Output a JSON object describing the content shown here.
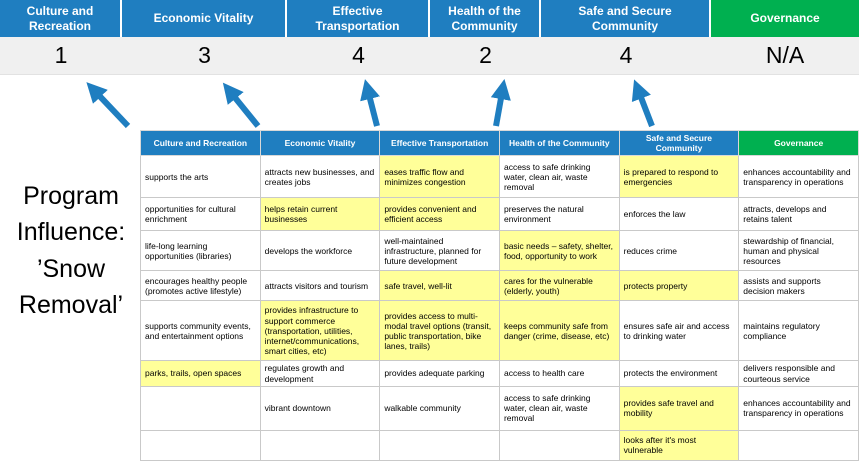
{
  "colors": {
    "blue": "#1f7ec0",
    "green": "#00b050",
    "yellow": "#ffff99",
    "scorebg": "#f0f0f0"
  },
  "program": {
    "text": "Program\nInfluence:\n’Snow\nRemoval’"
  },
  "scoreboard": {
    "columns": [
      {
        "label": "Culture and Recreation",
        "score": "1"
      },
      {
        "label": "Economic Vitality",
        "score": "3"
      },
      {
        "label": "Effective Transportation",
        "score": "4"
      },
      {
        "label": "Health of the Community",
        "score": "2"
      },
      {
        "label": "Safe and Secure Community",
        "score": "4"
      },
      {
        "label": "Governance",
        "score": "N/A"
      }
    ]
  },
  "matrix": {
    "headers": [
      {
        "label": "Culture and Recreation",
        "theme": "blue"
      },
      {
        "label": "Economic Vitality",
        "theme": "blue"
      },
      {
        "label": "Effective Transportation",
        "theme": "blue"
      },
      {
        "label": "Health of the Community",
        "theme": "blue"
      },
      {
        "label": "Safe and Secure Community",
        "theme": "blue"
      },
      {
        "label": "Governance",
        "theme": "green"
      }
    ],
    "rows": [
      [
        {
          "text": "supports the arts",
          "highlight": false
        },
        {
          "text": "attracts new businesses, and creates jobs",
          "highlight": false
        },
        {
          "text": "eases traffic flow and minimizes congestion",
          "highlight": true
        },
        {
          "text": "access to safe drinking water, clean air, waste removal",
          "highlight": false
        },
        {
          "text": "is prepared to respond to emergencies",
          "highlight": true
        },
        {
          "text": "enhances accountability and transparency in operations",
          "highlight": false
        }
      ],
      [
        {
          "text": "opportunities for cultural enrichment",
          "highlight": false
        },
        {
          "text": "helps retain current businesses",
          "highlight": true
        },
        {
          "text": "provides convenient and efficient access",
          "highlight": true
        },
        {
          "text": "preserves the natural environment",
          "highlight": false
        },
        {
          "text": "enforces the law",
          "highlight": false
        },
        {
          "text": "attracts, develops and retains talent",
          "highlight": false
        }
      ],
      [
        {
          "text": "life-long learning opportunities (libraries)",
          "highlight": false
        },
        {
          "text": "develops the workforce",
          "highlight": false
        },
        {
          "text": "well-maintained infrastructure, planned for future development",
          "highlight": false
        },
        {
          "text": "basic needs – safety, shelter, food, opportunity to work",
          "highlight": true
        },
        {
          "text": "reduces crime",
          "highlight": false
        },
        {
          "text": "stewardship of financial, human and physical resources",
          "highlight": false
        }
      ],
      [
        {
          "text": "encourages healthy people (promotes active lifestyle)",
          "highlight": false
        },
        {
          "text": "attracts visitors and tourism",
          "highlight": false
        },
        {
          "text": "safe travel, well-lit",
          "highlight": true
        },
        {
          "text": "cares for the vulnerable (elderly, youth)",
          "highlight": true
        },
        {
          "text": "protects property",
          "highlight": true
        },
        {
          "text": "assists and supports decision makers",
          "highlight": false
        }
      ],
      [
        {
          "text": "supports community events, and entertainment options",
          "highlight": false
        },
        {
          "text": "provides infrastructure to support commerce (transportation, utilities, internet/communications, smart cities, etc)",
          "highlight": true
        },
        {
          "text": "provides access to multi-modal travel options (transit, public transportation, bike lanes, trails)",
          "highlight": true
        },
        {
          "text": "keeps community safe from danger (crime, disease, etc)",
          "highlight": true
        },
        {
          "text": "ensures safe air and access to drinking water",
          "highlight": false
        },
        {
          "text": "maintains regulatory compliance",
          "highlight": false
        }
      ],
      [
        {
          "text": "parks, trails, open spaces",
          "highlight": true
        },
        {
          "text": "regulates growth and development",
          "highlight": false
        },
        {
          "text": "provides adequate parking",
          "highlight": false
        },
        {
          "text": "access to health care",
          "highlight": false
        },
        {
          "text": "protects the environment",
          "highlight": false
        },
        {
          "text": "delivers responsible and courteous service",
          "highlight": false
        }
      ],
      [
        {
          "text": "",
          "highlight": false
        },
        {
          "text": "vibrant downtown",
          "highlight": false
        },
        {
          "text": "walkable community",
          "highlight": false
        },
        {
          "text": "access to safe drinking water, clean air, waste removal",
          "highlight": false
        },
        {
          "text": "provides safe travel and mobility",
          "highlight": true
        },
        {
          "text": "enhances accountability and transparency in operations",
          "highlight": false
        }
      ],
      [
        {
          "text": "",
          "highlight": false
        },
        {
          "text": "",
          "highlight": false
        },
        {
          "text": "",
          "highlight": false
        },
        {
          "text": "",
          "highlight": false
        },
        {
          "text": "looks after it's most vulnerable",
          "highlight": true
        },
        {
          "text": "",
          "highlight": false
        }
      ]
    ]
  }
}
